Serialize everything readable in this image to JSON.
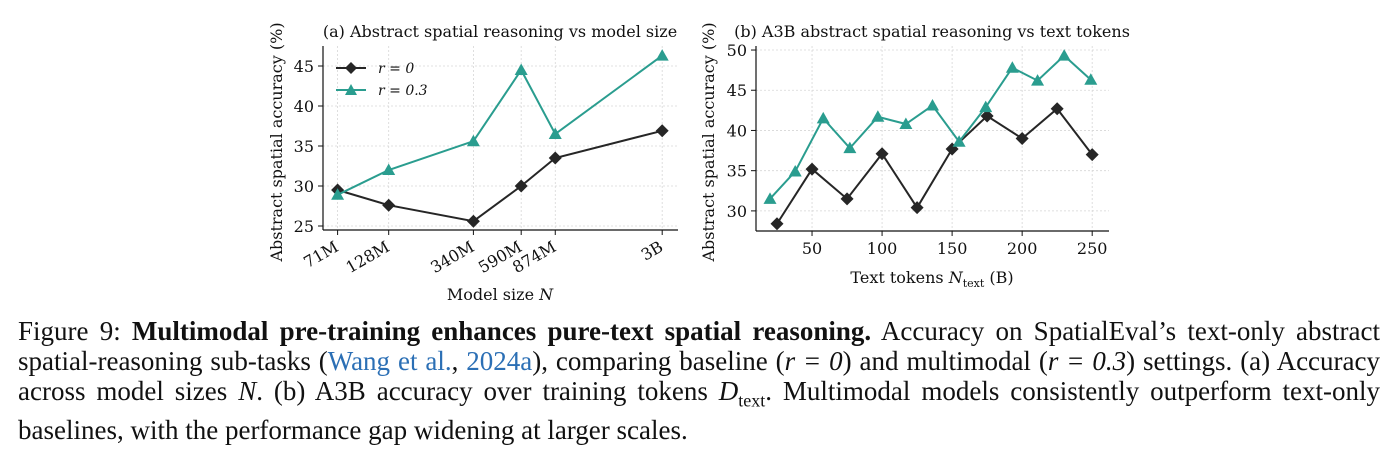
{
  "chart_data": [
    {
      "type": "line",
      "title": "(a) Abstract spatial reasoning vs model size",
      "xlabel_main": "Model size ",
      "xlabel_var": "N",
      "ylabel": "Abstract spatial accuracy (%)",
      "x": [
        71,
        128,
        340,
        590,
        874,
        3000
      ],
      "x_scale": "log",
      "xtick_labels": [
        "71M",
        "128M",
        "340M",
        "590M",
        "874M",
        "3B"
      ],
      "ylim": [
        24.5,
        47.5
      ],
      "yticks": [
        25,
        30,
        35,
        40,
        45
      ],
      "grid": true,
      "legend_position": "top-left",
      "series": [
        {
          "name": "r = 0",
          "values": [
            29.5,
            27.6,
            25.6,
            30.0,
            33.5,
            36.9
          ],
          "color": "#262626",
          "marker": "diamond"
        },
        {
          "name": "r = 0.3",
          "values": [
            28.9,
            32.0,
            35.6,
            44.5,
            36.5,
            46.3
          ],
          "color": "#2a9d8f",
          "marker": "triangle"
        }
      ]
    },
    {
      "type": "line",
      "title": "(b) A3B abstract spatial reasoning vs text tokens",
      "xlabel_main": "Text tokens ",
      "xlabel_var": "N",
      "xlabel_sub": "text",
      "xlabel_unit": " (B)",
      "ylabel": "Abstract spatial accuracy (%)",
      "xlim": [
        10,
        262
      ],
      "xticks": [
        50,
        100,
        150,
        200,
        250
      ],
      "ylim": [
        27.5,
        50.5
      ],
      "yticks": [
        30,
        35,
        40,
        45,
        50
      ],
      "grid": true,
      "series": [
        {
          "name": "r = 0",
          "x": [
            25,
            50,
            75,
            100,
            125,
            150,
            175,
            200,
            225,
            250
          ],
          "values": [
            28.4,
            35.2,
            31.5,
            37.1,
            30.4,
            37.7,
            41.8,
            39.0,
            42.7,
            37.0
          ],
          "color": "#262626",
          "marker": "diamond"
        },
        {
          "name": "r = 0.3",
          "x": [
            20,
            38,
            58,
            77,
            97,
            117,
            136,
            155,
            174,
            193,
            211,
            230,
            249
          ],
          "values": [
            31.5,
            34.9,
            41.5,
            37.8,
            41.7,
            40.8,
            43.1,
            38.6,
            42.9,
            47.8,
            46.2,
            49.3,
            46.3
          ],
          "color": "#2a9d8f",
          "marker": "triangle"
        }
      ]
    }
  ],
  "caption": {
    "label": "Figure 9: ",
    "bold": "Multimodal pre-training enhances pure-text spatial reasoning.",
    "p1": " Accuracy on SpatialEval’s text-only abstract spatial-reasoning sub-tasks (",
    "cite_author": "Wang et al.",
    "cite_sep": ", ",
    "cite_year": "2024a",
    "p2": "), comparing baseline (",
    "r0": "r = 0",
    "p3": ") and multimodal (",
    "r03": "r = 0.3",
    "p4": ") settings. (a) Accuracy across model sizes ",
    "varN": "N",
    "p5": ". (b) A3B accuracy over training tokens ",
    "varD": "D",
    "subtext": "text",
    "p6": ". Multimodal models consistently outperform text-only baselines, with the performance gap widening at larger scales."
  }
}
